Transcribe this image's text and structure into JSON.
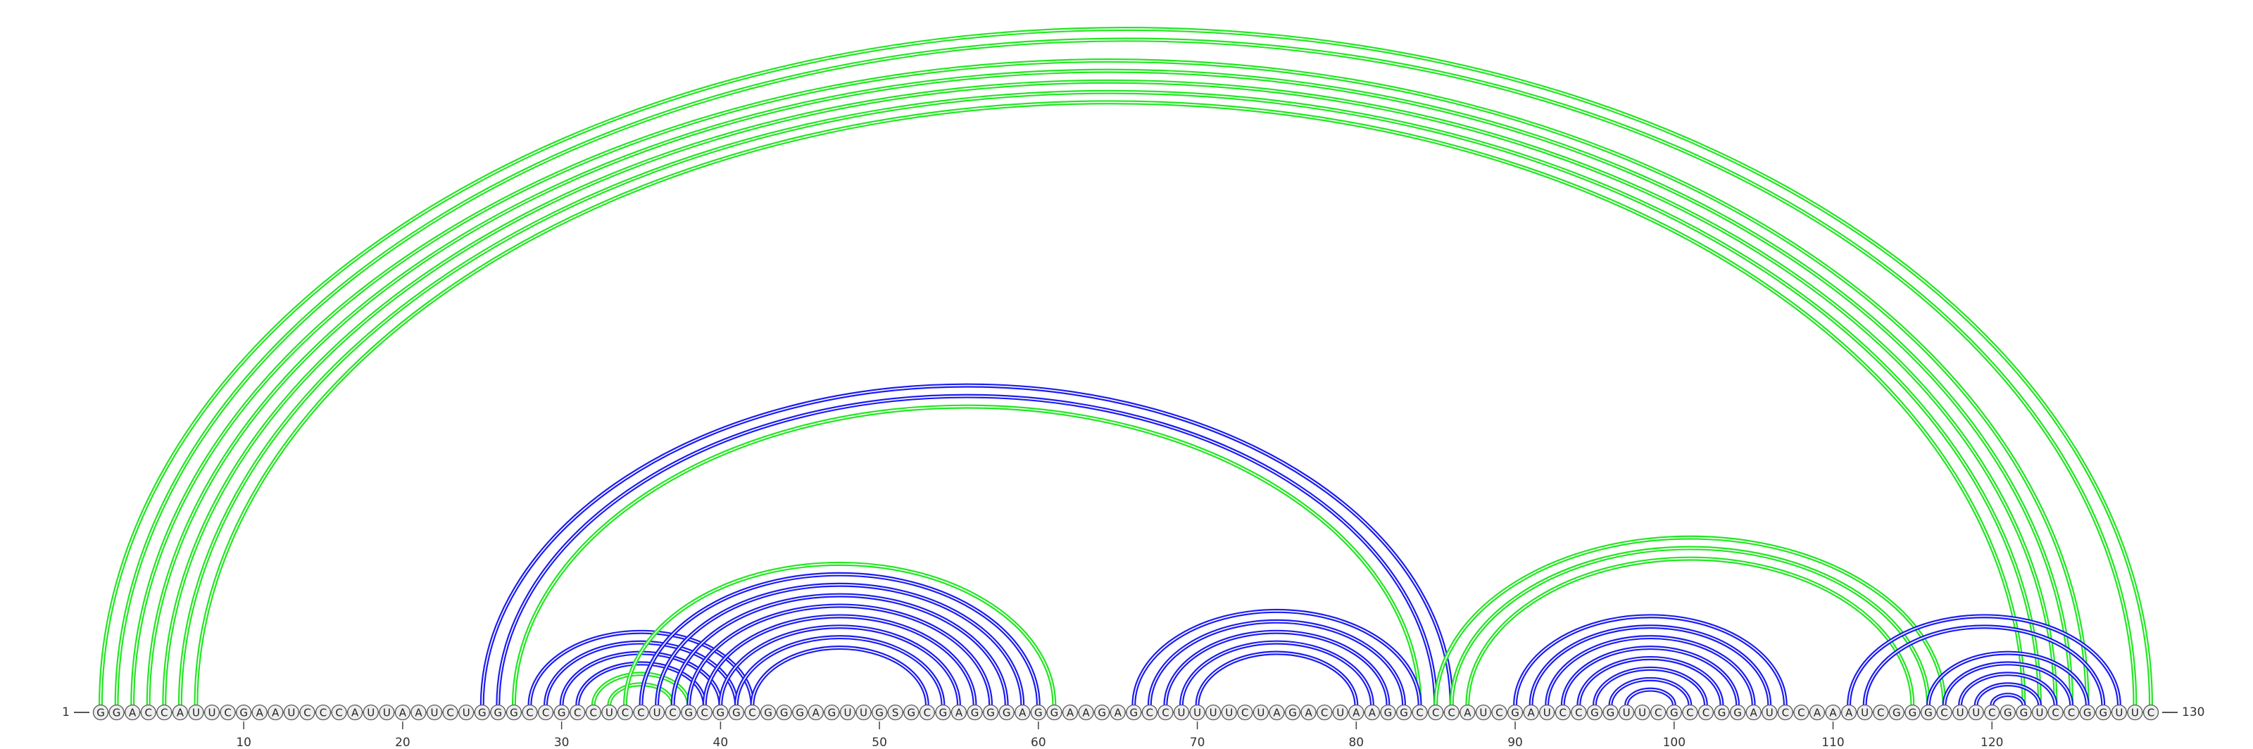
{
  "range": [
    1,
    130
  ],
  "ticks": [
    10,
    20,
    30,
    40,
    50,
    60,
    70,
    80,
    90,
    100,
    110,
    120
  ],
  "sequence": [
    "G",
    "G",
    "A",
    "C",
    "C",
    "A",
    "U",
    "U",
    "C",
    "G",
    "A",
    "A",
    "U",
    "C",
    "C",
    "C",
    "A",
    "U",
    "U",
    "A",
    "A",
    "U",
    "C",
    "U",
    "G",
    "G",
    "G",
    "C",
    "C",
    "G",
    "C",
    "C",
    "U",
    "C",
    "C",
    "U",
    "C",
    "G",
    "C",
    "G",
    "G",
    "C",
    "G",
    "G",
    "G",
    "A",
    "G",
    "U",
    "U",
    "G",
    "S",
    "G",
    "C",
    "G",
    "A",
    "G",
    "G",
    "G",
    "A",
    "G",
    "G",
    "A",
    "A",
    "G",
    "A",
    "G",
    "C",
    "C",
    "U",
    "U",
    "U",
    "U",
    "C",
    "U",
    "A",
    "G",
    "A",
    "C",
    "U",
    "A",
    "A",
    "G",
    "G",
    "C",
    "C",
    "C",
    "A",
    "U",
    "C",
    "G",
    "A",
    "U",
    "C",
    "C",
    "G",
    "G",
    "U",
    "U",
    "C",
    "G",
    "C",
    "C",
    "G",
    "G",
    "A",
    "U",
    "C",
    "C",
    "A",
    "A",
    "A",
    "U",
    "C",
    "G",
    "G",
    "G",
    "C",
    "U",
    "U",
    "C",
    "G",
    "G",
    "U",
    "C",
    "C",
    "G",
    "G",
    "U",
    "U",
    "C"
  ],
  "helices": [
    {
      "color": "#22e622",
      "pairs": [
        [
          1,
          130
        ],
        [
          2,
          129
        ],
        [
          3,
          126
        ],
        [
          4,
          125
        ],
        [
          5,
          124
        ],
        [
          6,
          123
        ],
        [
          7,
          122
        ]
      ]
    },
    {
      "color": "#1c1cf0",
      "pairs": [
        [
          25,
          86
        ],
        [
          26,
          85
        ]
      ]
    },
    {
      "color": "#22e622",
      "pairs": [
        [
          27,
          84
        ]
      ]
    },
    {
      "color": "#1c1cf0",
      "pairs": [
        [
          28,
          42
        ],
        [
          29,
          41
        ],
        [
          30,
          40
        ],
        [
          31,
          39
        ]
      ]
    },
    {
      "color": "#22e622",
      "pairs": [
        [
          32,
          38
        ],
        [
          33,
          37
        ]
      ]
    },
    {
      "color": "#22e622",
      "pairs": [
        [
          34,
          61
        ]
      ]
    },
    {
      "color": "#1c1cf0",
      "pairs": [
        [
          35,
          60
        ],
        [
          36,
          59
        ],
        [
          37,
          58
        ],
        [
          38,
          57
        ],
        [
          39,
          56
        ],
        [
          40,
          55
        ],
        [
          41,
          54
        ],
        [
          42,
          53
        ]
      ]
    },
    {
      "color": "#1c1cf0",
      "pairs": [
        [
          66,
          84
        ],
        [
          67,
          83
        ],
        [
          68,
          82
        ],
        [
          69,
          81
        ],
        [
          70,
          80
        ]
      ]
    },
    {
      "color": "#22e622",
      "pairs": [
        [
          85,
          117
        ],
        [
          86,
          116
        ],
        [
          87,
          115
        ]
      ]
    },
    {
      "color": "#1c1cf0",
      "pairs": [
        [
          90,
          107
        ],
        [
          91,
          106
        ],
        [
          92,
          105
        ],
        [
          93,
          104
        ],
        [
          94,
          103
        ],
        [
          95,
          102
        ],
        [
          96,
          101
        ],
        [
          97,
          100
        ]
      ]
    },
    {
      "color": "#1c1cf0",
      "pairs": [
        [
          111,
          128
        ],
        [
          112,
          127
        ],
        [
          116,
          126
        ],
        [
          117,
          125
        ],
        [
          118,
          124
        ],
        [
          119,
          123
        ],
        [
          120,
          122
        ]
      ]
    }
  ]
}
